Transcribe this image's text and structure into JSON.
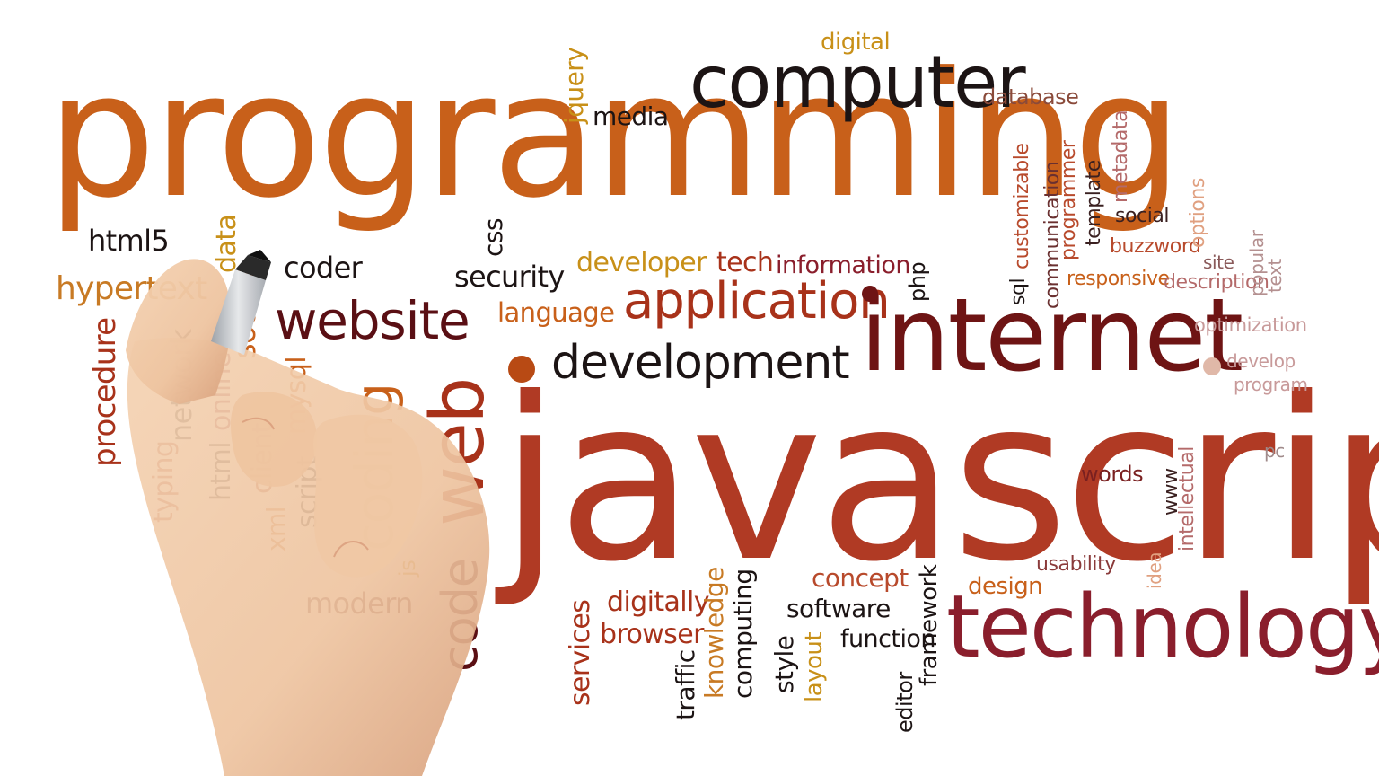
{
  "image": {
    "description_layers": [
      "word-cloud",
      "hand-with-marker"
    ],
    "background_color": "#ffffff"
  },
  "palette": {
    "orange": "#c8601a",
    "burnt_orange": "#b84a14",
    "rust": "#a8321a",
    "dark_red": "#6e1414",
    "maroon": "#5a0f14",
    "near_black": "#1c1414",
    "wine": "#8a1e2c",
    "rose": "#b46a6a",
    "pink": "#d8a6a6",
    "light_pink": "#e6bcbc",
    "gold": "#c89018",
    "skin": "#f0c8a4",
    "skin_shadow": "#d8a07c",
    "marker_body": "#cfd2d6",
    "marker_tip": "#2a2a2a"
  },
  "words": {
    "programming": "programming",
    "computer": "computer",
    "digital": "digital",
    "jquery": "jquery",
    "media": "media",
    "database": "database",
    "html5": "html5",
    "data": "data",
    "coder": "coder",
    "css": "css",
    "security": "security",
    "developer": "developer",
    "tech": "tech",
    "information": "information",
    "php": "php",
    "sql": "sql",
    "customizable": "customizable",
    "communication": "communication",
    "programmer": "programmer",
    "template": "template",
    "metadata": "metadata",
    "social": "social",
    "options": "options",
    "buzzword": "buzzword",
    "site": "site",
    "popular": "popular",
    "text": "text",
    "responsive": "responsive",
    "description": "description",
    "hypertext": "hypertext",
    "website": "website",
    "language": "language",
    "application": "application",
    "internet": "internet",
    "optimization": "optimization",
    "procedure": "procedure",
    "network": "network",
    "source": "source",
    "online": "online",
    "mysql": "mysql",
    "development": "development",
    "develop": "develop",
    "program": "program",
    "web": "web",
    "coding": "coding",
    "javascript": "javascript",
    "pc": "pc",
    "typing": "typing",
    "html": "html",
    "client": "client",
    "xml": "xml",
    "script": "script",
    "words": "words",
    "www": "www",
    "intellectual": "intellectual",
    "code": "code",
    "js": "js",
    "idea": "idea",
    "usability": "usability",
    "concept": "concept",
    "design": "design",
    "modern": "modern",
    "services": "services",
    "digitally": "digitally",
    "browser": "browser",
    "knowledge": "knowledge",
    "computing": "computing",
    "software": "software",
    "framework": "framework",
    "technology": "technology",
    "traffic": "traffic",
    "style": "style",
    "layout": "layout",
    "function": "function",
    "editor": "editor"
  }
}
